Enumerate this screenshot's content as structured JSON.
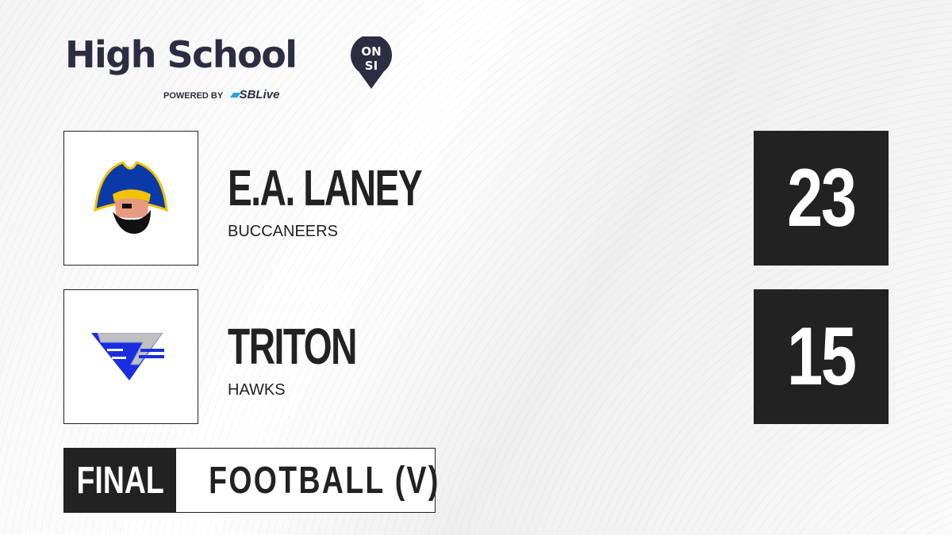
{
  "brand": {
    "title": "High School",
    "badge_top": "ON",
    "badge_bottom": "SI",
    "powered_by": "POWERED BY",
    "partner": "SBLive"
  },
  "teams": [
    {
      "name": "E.A. LANEY",
      "mascot": "BUCCANEERS",
      "score": "23",
      "logo_icon": "pirate-logo",
      "colors": {
        "primary": "#0a3aa8",
        "accent": "#f2c200"
      }
    },
    {
      "name": "TRITON",
      "mascot": "HAWKS",
      "score": "15",
      "logo_icon": "hawk-triangle-logo",
      "colors": {
        "primary": "#1a2ee0",
        "accent": "#c0c0c0"
      }
    }
  ],
  "status": {
    "state": "FINAL",
    "sport": "FOOTBALL (V)"
  },
  "colors": {
    "dark": "#222222",
    "brand": "#2b2e42",
    "partner": "#1fa6e0"
  }
}
